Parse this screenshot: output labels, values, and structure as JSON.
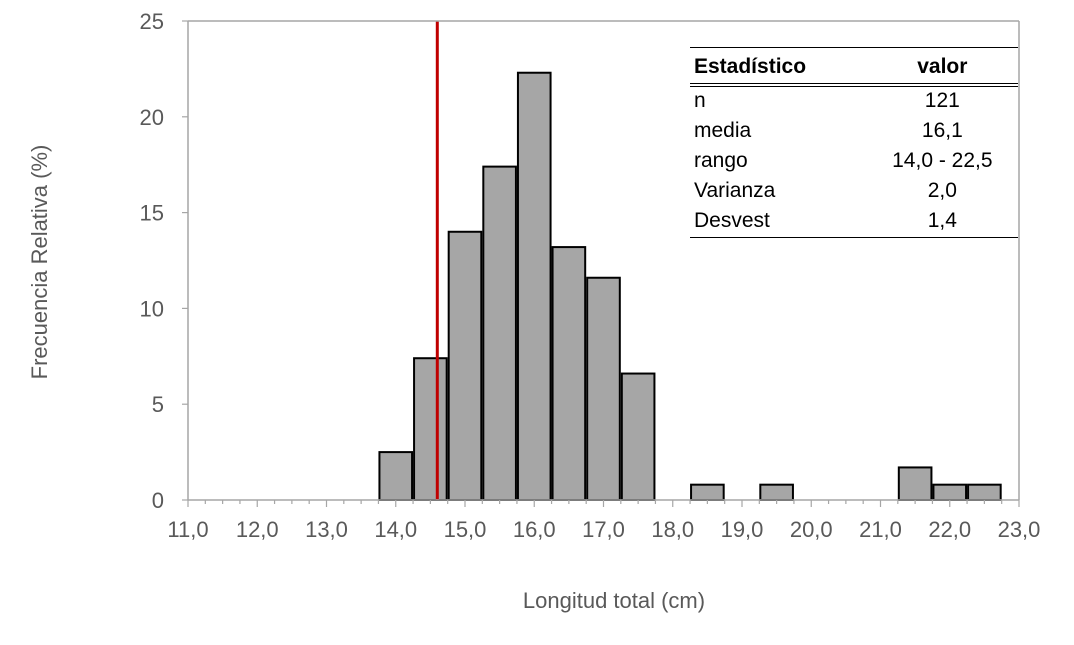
{
  "chart_data": {
    "type": "bar",
    "title": "",
    "xlabel": "Longitud total (cm)",
    "ylabel": "Frecuencia Relativa (%)",
    "xlim": [
      11.0,
      23.0
    ],
    "ylim": [
      0,
      25
    ],
    "x_ticks": [
      "11,0",
      "12,0",
      "13,0",
      "14,0",
      "15,0",
      "16,0",
      "17,0",
      "18,0",
      "19,0",
      "20,0",
      "21,0",
      "22,0",
      "23,0"
    ],
    "y_ticks": [
      "0",
      "5",
      "10",
      "15",
      "20",
      "25"
    ],
    "bins": [
      {
        "x0": 13.75,
        "x1": 14.25,
        "value": 2.5
      },
      {
        "x0": 14.25,
        "x1": 14.75,
        "value": 7.4
      },
      {
        "x0": 14.75,
        "x1": 15.25,
        "value": 14.0
      },
      {
        "x0": 15.25,
        "x1": 15.75,
        "value": 17.4
      },
      {
        "x0": 15.75,
        "x1": 16.25,
        "value": 22.3
      },
      {
        "x0": 16.25,
        "x1": 16.75,
        "value": 13.2
      },
      {
        "x0": 16.75,
        "x1": 17.25,
        "value": 11.6
      },
      {
        "x0": 17.25,
        "x1": 17.75,
        "value": 6.6
      },
      {
        "x0": 18.25,
        "x1": 18.75,
        "value": 0.8
      },
      {
        "x0": 19.25,
        "x1": 19.75,
        "value": 0.8
      },
      {
        "x0": 21.25,
        "x1": 21.75,
        "value": 1.7
      },
      {
        "x0": 21.75,
        "x1": 22.25,
        "value": 0.8
      },
      {
        "x0": 22.25,
        "x1": 22.75,
        "value": 0.8
      }
    ],
    "reference_line": {
      "x": 14.6,
      "color": "#c00000"
    },
    "bar_color": "#a6a6a6",
    "grid": false
  },
  "stats_table": {
    "headers": [
      "Estadístico",
      "valor"
    ],
    "rows": [
      [
        "n",
        "121"
      ],
      [
        "media",
        "16,1"
      ],
      [
        "rango",
        "14,0 - 22,5"
      ],
      [
        "Varianza",
        "2,0"
      ],
      [
        "Desvest",
        "1,4"
      ]
    ]
  }
}
